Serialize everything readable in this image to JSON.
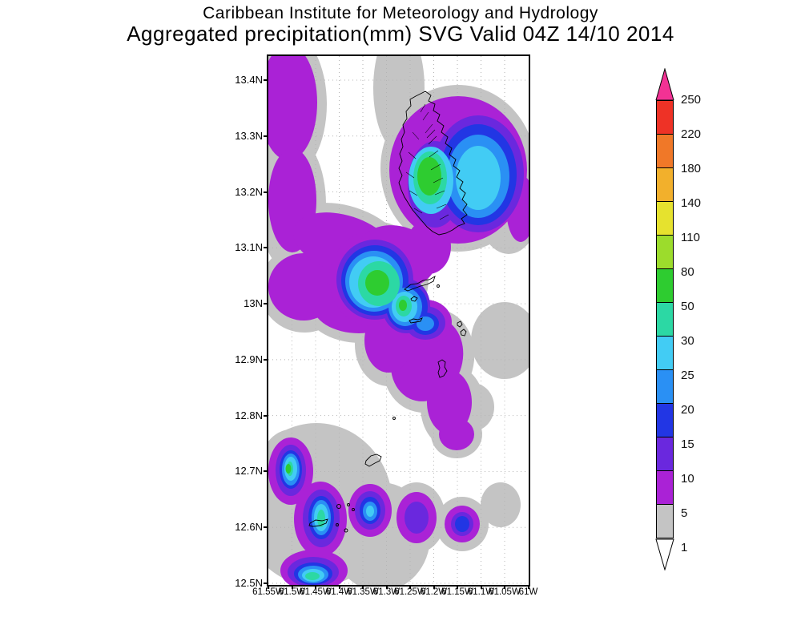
{
  "title": {
    "line1": "Caribbean Institute for Meteorology and Hydrology",
    "line2": "Aggregated precipitation(mm) SVG Valid 04Z 14/10 2014"
  },
  "map": {
    "y_ticks": [
      "13.4N",
      "13.3N",
      "13.2N",
      "13.1N",
      "13N",
      "12.9N",
      "12.8N",
      "12.7N",
      "12.6N",
      "12.5N"
    ],
    "x_ticks": [
      "61.55W",
      "61.5W",
      "61.45W",
      "61.4W",
      "61.35W",
      "61.3W",
      "61.25W",
      "61.2W",
      "61.15W",
      "61.1W",
      "61.05W",
      "61W"
    ]
  },
  "palette": {
    "1-5": "#c4c4c4",
    "5-10": "#aa22d6",
    "10-15": "#6a28de",
    "15-20": "#2236e4",
    "20-25": "#2a90f4",
    "25-30": "#42ccf4",
    "30-50": "#2cd8a4",
    "50-80": "#2ecc30"
  },
  "colorbar": {
    "labels": [
      "250",
      "220",
      "180",
      "140",
      "110",
      "80",
      "50",
      "30",
      "25",
      "20",
      "15",
      "10",
      "5",
      "1"
    ],
    "segments_top_to_bottom": [
      "#ee3226",
      "#f07828",
      "#f2b02c",
      "#e6e22e",
      "#9cdc2c",
      "#2ecc30",
      "#2cd8a4",
      "#42ccf4",
      "#2a90f4",
      "#2236e4",
      "#6a28de",
      "#aa22d6",
      "#c4c4c4"
    ],
    "arrow_top_color": "#f23294",
    "arrow_bottom_color": "#ffffff"
  },
  "chart_data": {
    "type": "heatmap",
    "subtype": "filled-contour precipitation map",
    "title": "Aggregated precipitation(mm) SVG Valid 04Z 14/10 2014",
    "source": "Caribbean Institute for Meteorology and Hydrology",
    "region": "St. Vincent and the Grenadines",
    "x_ticks": [
      "61.55W",
      "61.5W",
      "61.45W",
      "61.4W",
      "61.35W",
      "61.3W",
      "61.25W",
      "61.2W",
      "61.15W",
      "61.1W",
      "61.05W",
      "61W"
    ],
    "y_ticks": [
      "13.4N",
      "13.3N",
      "13.2N",
      "13.1N",
      "13N",
      "12.9N",
      "12.8N",
      "12.7N",
      "12.6N",
      "12.5N"
    ],
    "x_range": [
      "61.55W",
      "61W"
    ],
    "y_range": [
      "12.5N",
      "13.44N"
    ],
    "contour_levels_mm": [
      1,
      5,
      10,
      15,
      20,
      25,
      30,
      50,
      80,
      110,
      140,
      180,
      220,
      250
    ],
    "level_colors_low_to_high": [
      "#ffffff",
      "#c4c4c4",
      "#aa22d6",
      "#6a28de",
      "#2236e4",
      "#2a90f4",
      "#42ccf4",
      "#2cd8a4",
      "#2ecc30",
      "#9cdc2c",
      "#e6e22e",
      "#f2b02c",
      "#f07828",
      "#ee3226",
      "#f23294"
    ],
    "grid": "dotted",
    "legend_position": "right vertical colorbar with arrow caps",
    "observed_maxima": [
      {
        "location": "central/southern St. Vincent island (~13.22N 61.19W)",
        "value_mm": "50-80"
      },
      {
        "location": "offshore NW of Bequia (~13.05N 61.38W)",
        "value_mm": "50-80"
      },
      {
        "location": "east of St. Vincent (~13.2N 61.08W)",
        "value_mm": "25-30"
      },
      {
        "location": "near 12.6N 61.42W",
        "value_mm": "25-30"
      },
      {
        "location": "near 12.7N 61.52W",
        "value_mm": "30-50"
      },
      {
        "location": "bottom edge ~12.5N 61.48W",
        "value_mm": "30-50"
      }
    ]
  }
}
